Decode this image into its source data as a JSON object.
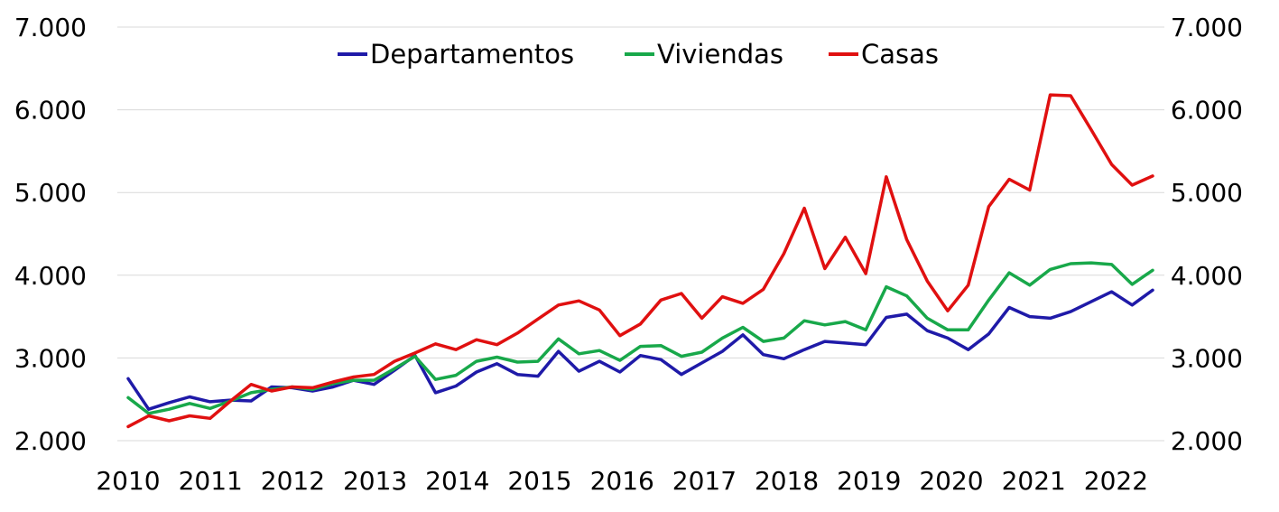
{
  "chart_data": {
    "type": "line",
    "title": "",
    "xlabel": "",
    "ylabel": "",
    "ylim": [
      2000,
      7000
    ],
    "y_ticks": [
      "2.000",
      "3.000",
      "4.000",
      "5.000",
      "6.000",
      "7.000"
    ],
    "y_tick_values": [
      2000,
      3000,
      4000,
      5000,
      6000,
      7000
    ],
    "x_ticks": [
      "2010",
      "2011",
      "2012",
      "2013",
      "2014",
      "2015",
      "2016",
      "2017",
      "2018",
      "2019",
      "2020",
      "2021",
      "2022"
    ],
    "grid": true,
    "legend_position": "top",
    "colors": {
      "Departamentos": "#1f1aa8",
      "Viviendas": "#18a84a",
      "Casas": "#e01010"
    },
    "series": [
      {
        "name": "Departamentos",
        "values": [
          2750,
          2380,
          2460,
          2530,
          2470,
          2490,
          2480,
          2650,
          2640,
          2600,
          2650,
          2730,
          2680,
          2850,
          3030,
          2580,
          2660,
          2830,
          2930,
          2800,
          2780,
          3080,
          2840,
          2960,
          2830,
          3030,
          2980,
          2800,
          2940,
          3080,
          3280,
          3040,
          2990,
          3100,
          3200,
          3180,
          3160,
          3490,
          3530,
          3330,
          3240,
          3100,
          3290,
          3610,
          3500,
          3480,
          3560,
          3680,
          3800,
          3640,
          3820
        ]
      },
      {
        "name": "Viviendas",
        "values": [
          2520,
          2330,
          2380,
          2450,
          2390,
          2480,
          2580,
          2620,
          2650,
          2620,
          2690,
          2730,
          2730,
          2870,
          3020,
          2740,
          2790,
          2960,
          3010,
          2950,
          2960,
          3230,
          3050,
          3090,
          2970,
          3140,
          3150,
          3020,
          3070,
          3240,
          3370,
          3200,
          3240,
          3450,
          3400,
          3440,
          3340,
          3860,
          3750,
          3480,
          3340,
          3340,
          3700,
          4030,
          3880,
          4070,
          4140,
          4150,
          4130,
          3890,
          4060
        ]
      },
      {
        "name": "Casas",
        "values": [
          2170,
          2300,
          2240,
          2300,
          2270,
          2480,
          2680,
          2600,
          2650,
          2640,
          2710,
          2770,
          2800,
          2960,
          3060,
          3170,
          3100,
          3220,
          3160,
          3300,
          3470,
          3640,
          3690,
          3580,
          3270,
          3410,
          3700,
          3780,
          3480,
          3740,
          3660,
          3830,
          4260,
          4810,
          4080,
          4460,
          4020,
          5190,
          4430,
          3930,
          3570,
          3880,
          4830,
          5160,
          5030,
          6180,
          6170,
          5760,
          5340,
          5090,
          5200
        ]
      }
    ]
  }
}
